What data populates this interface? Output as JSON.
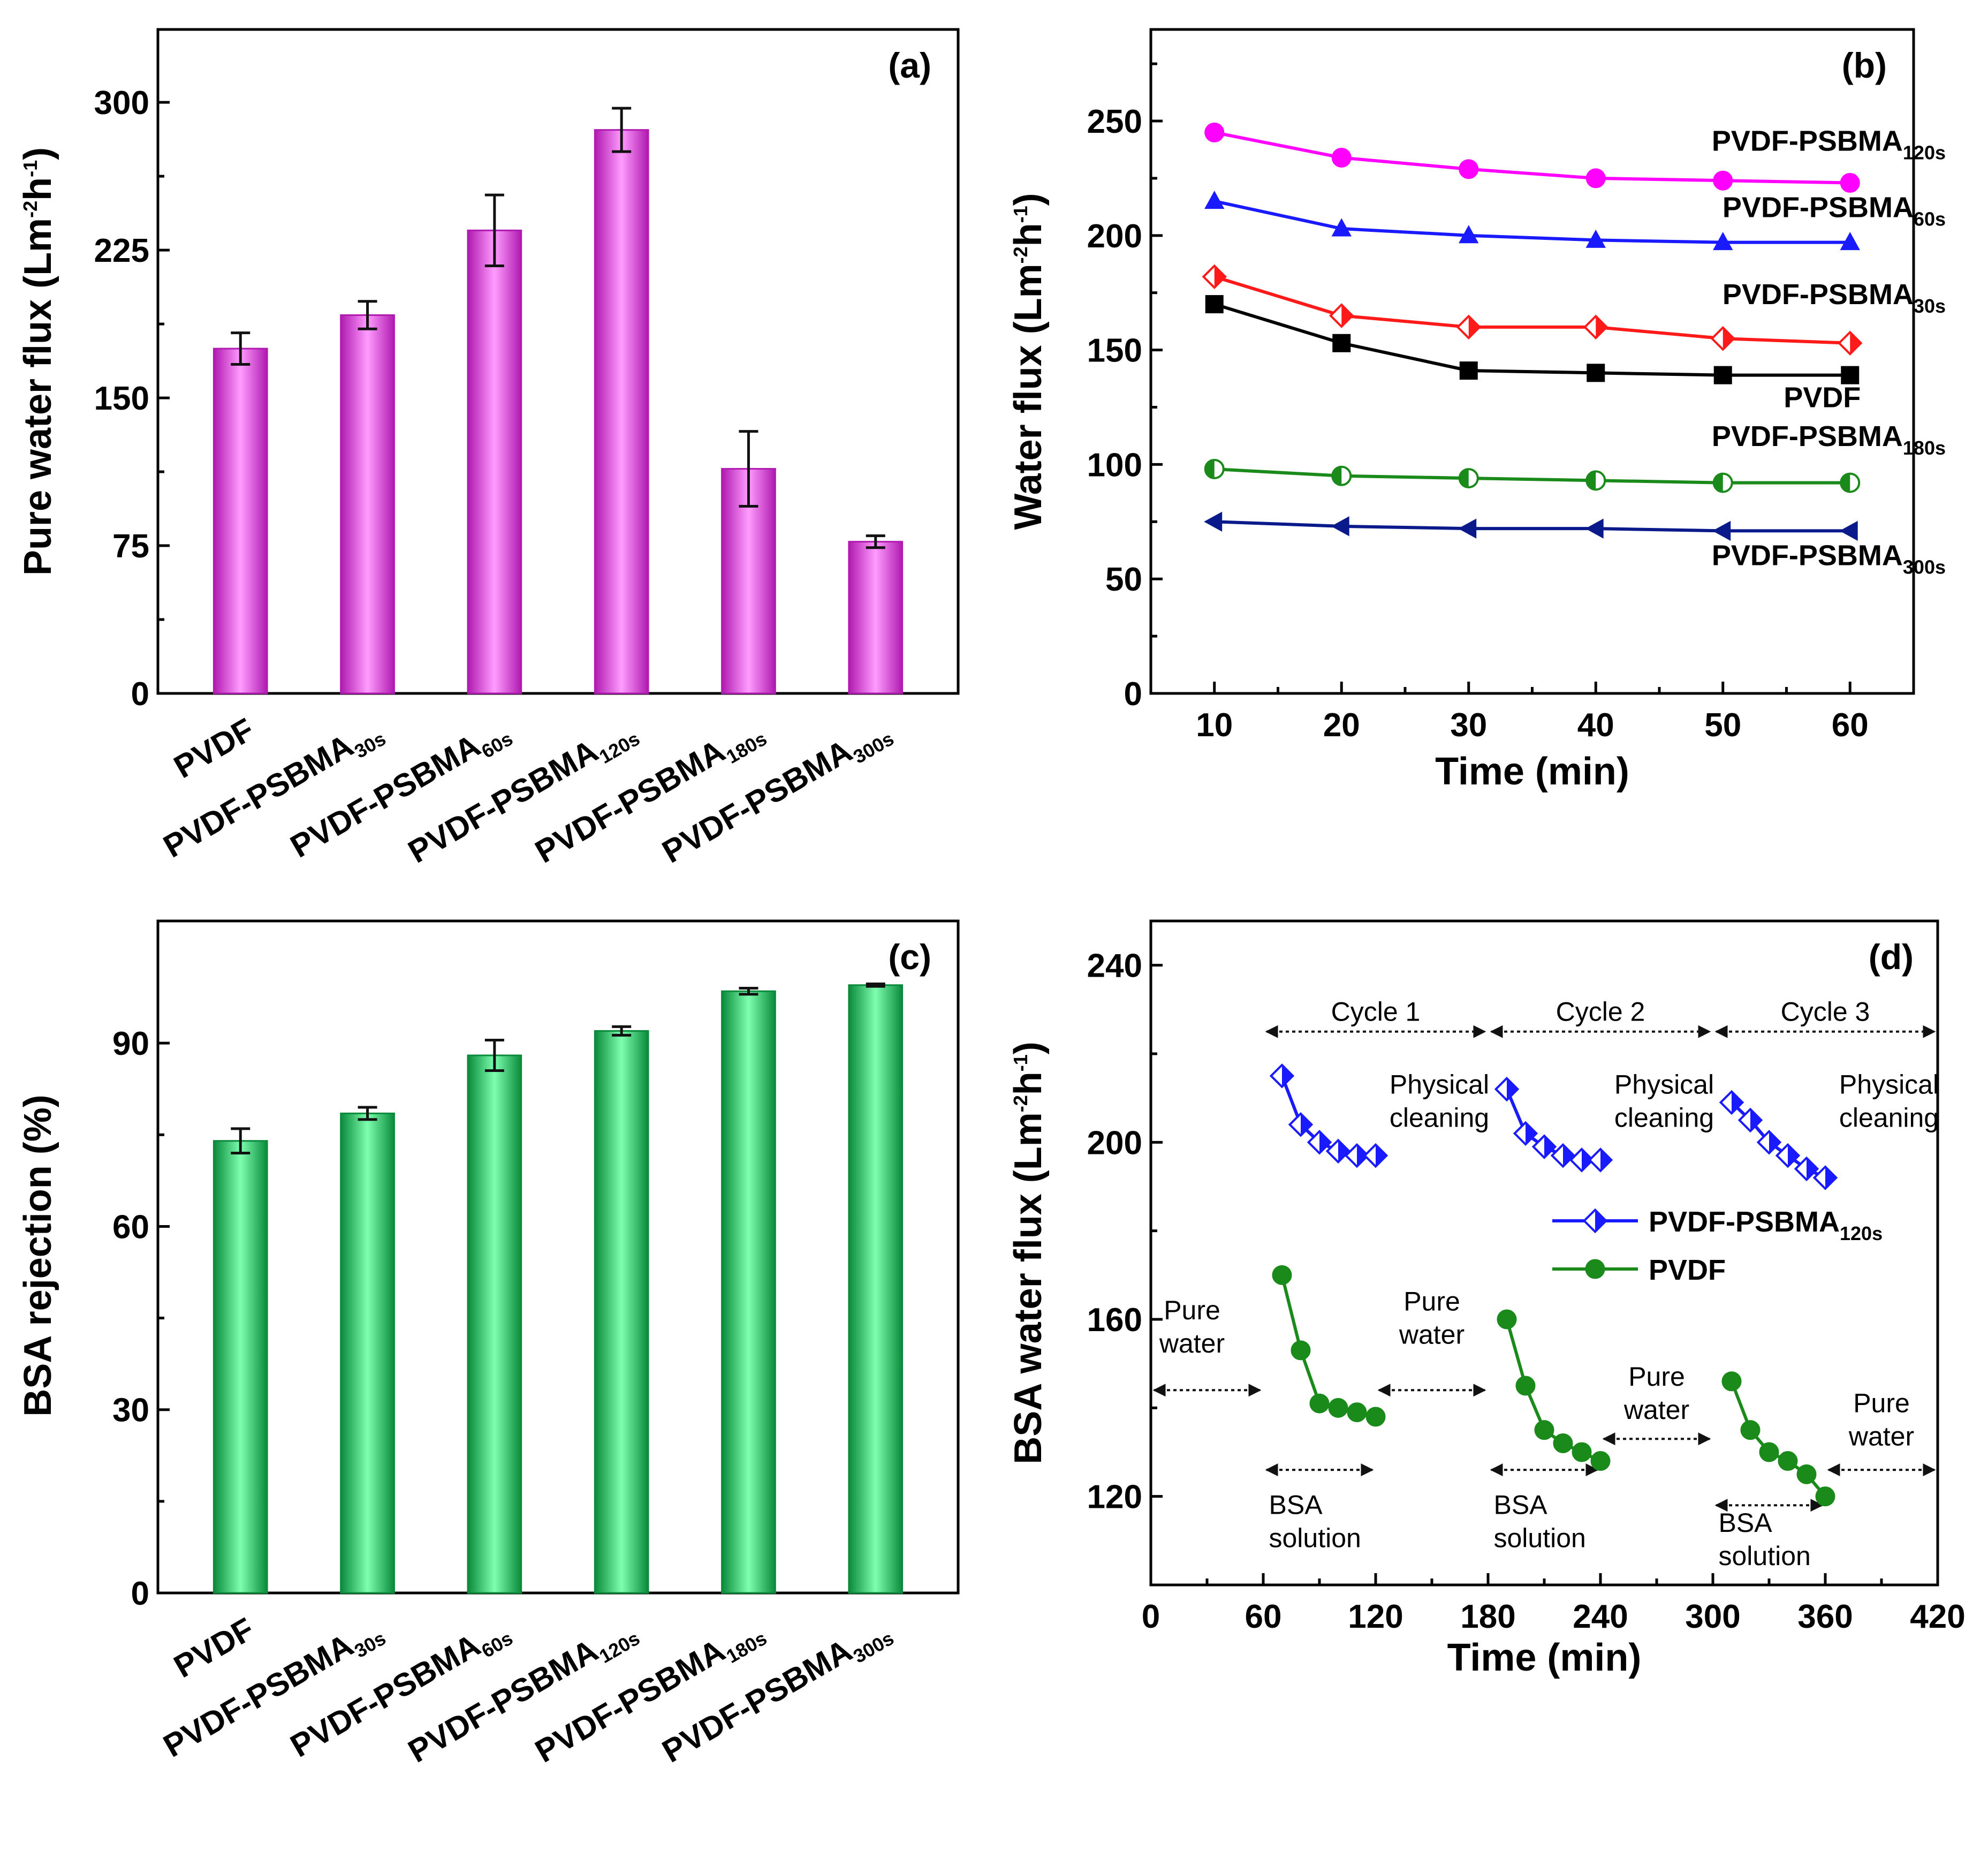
{
  "chart_data": [
    {
      "panel": "a",
      "type": "bar",
      "tag": "(a)",
      "ylabel": "Pure water flux (Lm",
      "ylabel_sup1": "-2",
      "ylabel_mid": "h",
      "ylabel_sup2": "-1",
      "ylabel_end": ")",
      "ylim": [
        0,
        337
      ],
      "yticks": [
        0,
        75,
        150,
        225,
        300
      ],
      "bar_color": "#e060e0",
      "categories": [
        {
          "main": "PVDF",
          "sub": ""
        },
        {
          "main": "PVDF-PSBMA",
          "sub": "30s"
        },
        {
          "main": "PVDF-PSBMA",
          "sub": "60s"
        },
        {
          "main": "PVDF-PSBMA",
          "sub": "120s"
        },
        {
          "main": "PVDF-PSBMA",
          "sub": "180s"
        },
        {
          "main": "PVDF-PSBMA",
          "sub": "300s"
        }
      ],
      "values": [
        175,
        192,
        235,
        286,
        114,
        77
      ],
      "errors": [
        8,
        7,
        18,
        11,
        19,
        3
      ]
    },
    {
      "panel": "b",
      "type": "line",
      "tag": "(b)",
      "xlabel": "Time (min)",
      "ylabel": "Water flux (Lm",
      "ylabel_sup1": "-2",
      "ylabel_mid": "h",
      "ylabel_sup2": "-1",
      "ylabel_end": ")",
      "xlim": [
        5,
        65
      ],
      "ylim": [
        0,
        290
      ],
      "xticks": [
        10,
        20,
        30,
        40,
        50,
        60
      ],
      "yticks": [
        0,
        50,
        100,
        150,
        200,
        250
      ],
      "x": [
        10,
        20,
        30,
        40,
        50,
        60
      ],
      "series": [
        {
          "name": "PVDF-PSBMA",
          "sub": "120s",
          "color": "#ff00ff",
          "marker": "circle",
          "values": [
            245,
            234,
            229,
            225,
            224,
            223
          ],
          "label_pos": [
            57,
            237
          ]
        },
        {
          "name": "PVDF-PSBMA",
          "sub": "60s",
          "color": "#1a1aff",
          "marker": "triangle-up",
          "values": [
            215,
            203,
            200,
            198,
            197,
            197
          ],
          "label_pos": [
            57,
            208
          ]
        },
        {
          "name": "PVDF-PSBMA",
          "sub": "30s",
          "color": "#ff1a1a",
          "marker": "diamond-half",
          "values": [
            182,
            165,
            160,
            160,
            155,
            153
          ],
          "label_pos": [
            57,
            170
          ]
        },
        {
          "name": "PVDF",
          "sub": "",
          "color": "#000000",
          "marker": "square",
          "values": [
            170,
            153,
            141,
            140,
            139,
            139
          ],
          "label_pos": [
            60,
            125
          ]
        },
        {
          "name": "PVDF-PSBMA",
          "sub": "180s",
          "color": "#1a8a1a",
          "marker": "circle-half",
          "values": [
            98,
            95,
            94,
            93,
            92,
            92
          ],
          "label_pos": [
            57,
            108
          ]
        },
        {
          "name": "PVDF-PSBMA",
          "sub": "300s",
          "color": "#0a1a8a",
          "marker": "triangle-left",
          "values": [
            75,
            73,
            72,
            72,
            71,
            71
          ],
          "label_pos": [
            57,
            56
          ]
        }
      ]
    },
    {
      "panel": "c",
      "type": "bar",
      "tag": "(c)",
      "ylabel": "BSA rejection (%)",
      "ylim": [
        0,
        110
      ],
      "yticks": [
        0,
        30,
        60,
        90
      ],
      "bar_color": "#30e070",
      "categories": [
        {
          "main": "PVDF",
          "sub": ""
        },
        {
          "main": "PVDF-PSBMA",
          "sub": "30s"
        },
        {
          "main": "PVDF-PSBMA",
          "sub": "60s"
        },
        {
          "main": "PVDF-PSBMA",
          "sub": "120s"
        },
        {
          "main": "PVDF-PSBMA",
          "sub": "180s"
        },
        {
          "main": "PVDF-PSBMA",
          "sub": "300s"
        }
      ],
      "values": [
        74,
        78.5,
        88,
        92,
        98.5,
        99.5
      ],
      "errors": [
        2,
        1,
        2.5,
        0.7,
        0.5,
        0.2
      ]
    },
    {
      "panel": "d",
      "type": "line",
      "tag": "(d)",
      "xlabel": "Time (min)",
      "ylabel": "BSA water flux (Lm",
      "ylabel_sup1": "-2",
      "ylabel_mid": "h",
      "ylabel_sup2": "-1",
      "ylabel_end": ")",
      "xlim": [
        0,
        420
      ],
      "ylim": [
        100,
        250
      ],
      "xticks": [
        0,
        60,
        120,
        180,
        240,
        300,
        360,
        420
      ],
      "yticks": [
        120,
        160,
        200,
        240
      ],
      "series": [
        {
          "name": "PVDF-PSBMA",
          "sub": "120s",
          "color": "#1a1aff",
          "marker": "diamond-half",
          "segments": [
            {
              "x": [
                70,
                80,
                90,
                100,
                110,
                120
              ],
              "y": [
                215,
                204,
                200,
                198,
                197,
                197
              ]
            },
            {
              "x": [
                190,
                200,
                210,
                220,
                230,
                240
              ],
              "y": [
                212,
                202,
                199,
                197,
                196,
                196
              ]
            },
            {
              "x": [
                310,
                320,
                330,
                340,
                350,
                360
              ],
              "y": [
                209,
                205,
                200,
                197,
                194,
                192
              ]
            }
          ]
        },
        {
          "name": "PVDF",
          "sub": "",
          "color": "#1a8a1a",
          "marker": "circle",
          "segments": [
            {
              "x": [
                70,
                80,
                90,
                100,
                110,
                120
              ],
              "y": [
                170,
                153,
                141,
                140,
                139,
                138
              ]
            },
            {
              "x": [
                190,
                200,
                210,
                220,
                230,
                240
              ],
              "y": [
                160,
                145,
                135,
                132,
                130,
                128
              ]
            },
            {
              "x": [
                310,
                320,
                330,
                340,
                350,
                360
              ],
              "y": [
                146,
                135,
                130,
                128,
                125,
                120
              ]
            }
          ]
        }
      ],
      "cycles": [
        {
          "label": "Cycle 1",
          "x": [
            60,
            180
          ],
          "y": 225
        },
        {
          "label": "Cycle 2",
          "x": [
            180,
            300
          ],
          "y": 225
        },
        {
          "label": "Cycle 3",
          "x": [
            300,
            420
          ],
          "y": 225
        }
      ],
      "cleaning": [
        {
          "line1": "Physical",
          "line2": "cleaning",
          "x": 154,
          "y": 211
        },
        {
          "line1": "Physical",
          "line2": "cleaning",
          "x": 274,
          "y": 211
        },
        {
          "line1": "Physical",
          "line2": "cleaning",
          "x": 394,
          "y": 211
        }
      ],
      "pure_water": [
        {
          "line1": "Pure",
          "line2": "water",
          "x": [
            0,
            60
          ],
          "arrow_y": 144,
          "text_x": 22,
          "text_y": 160
        },
        {
          "line1": "Pure",
          "line2": "water",
          "x": [
            120,
            180
          ],
          "arrow_y": 144,
          "text_x": 150,
          "text_y": 162
        },
        {
          "line1": "Pure",
          "line2": "water",
          "x": [
            240,
            300
          ],
          "arrow_y": 133,
          "text_x": 270,
          "text_y": 145
        },
        {
          "line1": "Pure",
          "line2": "water",
          "x": [
            360,
            420
          ],
          "arrow_y": 126,
          "text_x": 390,
          "text_y": 139
        }
      ],
      "bsa": [
        {
          "line1": "BSA",
          "line2": "solution",
          "x": [
            60,
            120
          ],
          "arrow_y": 126,
          "text_x": 63,
          "text_y": 116
        },
        {
          "line1": "BSA",
          "line2": "solution",
          "x": [
            180,
            240
          ],
          "arrow_y": 126,
          "text_x": 183,
          "text_y": 116
        },
        {
          "line1": "BSA",
          "line2": "solution",
          "x": [
            300,
            360
          ],
          "arrow_y": 118,
          "text_x": 303,
          "text_y": 112
        }
      ],
      "legend": "right"
    }
  ]
}
